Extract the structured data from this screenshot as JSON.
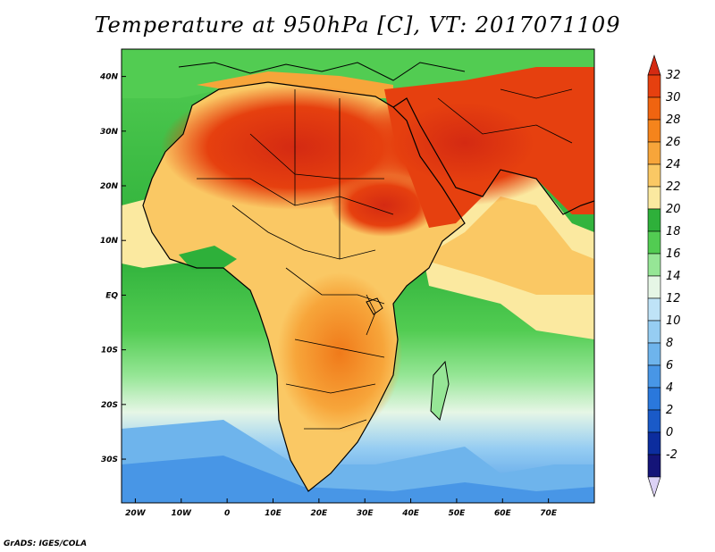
{
  "title": "Temperature at 950hPa [C], VT: 2017071109",
  "credit": "GrADS: IGES/COLA",
  "map": {
    "lon_range": [
      -23,
      80
    ],
    "lat_range": [
      -38,
      45
    ],
    "lat_ticks": [
      {
        "value": 40,
        "label": "40N"
      },
      {
        "value": 30,
        "label": "30N"
      },
      {
        "value": 20,
        "label": "20N"
      },
      {
        "value": 10,
        "label": "10N"
      },
      {
        "value": 0,
        "label": "EQ"
      },
      {
        "value": -10,
        "label": "10S"
      },
      {
        "value": -20,
        "label": "20S"
      },
      {
        "value": -30,
        "label": "30S"
      }
    ],
    "lon_ticks": [
      {
        "value": -20,
        "label": "20W"
      },
      {
        "value": -10,
        "label": "10W"
      },
      {
        "value": 0,
        "label": "0"
      },
      {
        "value": 10,
        "label": "10E"
      },
      {
        "value": 20,
        "label": "20E"
      },
      {
        "value": 30,
        "label": "30E"
      },
      {
        "value": 40,
        "label": "40E"
      },
      {
        "value": 50,
        "label": "50E"
      },
      {
        "value": 60,
        "label": "60E"
      },
      {
        "value": 70,
        "label": "70E"
      }
    ]
  },
  "colorbar": {
    "levels": [
      "32",
      "30",
      "28",
      "26",
      "24",
      "22",
      "20",
      "18",
      "16",
      "14",
      "12",
      "10",
      "8",
      "6",
      "4",
      "2",
      "0",
      "-2"
    ],
    "colors": [
      "#d42a12",
      "#e6400f",
      "#f06410",
      "#f5841c",
      "#f7a53a",
      "#fac864",
      "#fbe9a0",
      "#2eb03a",
      "#52cc52",
      "#96e696",
      "#e6f6e6",
      "#bfe3f7",
      "#96cdf2",
      "#6eb4ec",
      "#4896e6",
      "#2a78dc",
      "#1a5ac8",
      "#0c2d9e",
      "#141478",
      "#dcd2f5"
    ]
  }
}
